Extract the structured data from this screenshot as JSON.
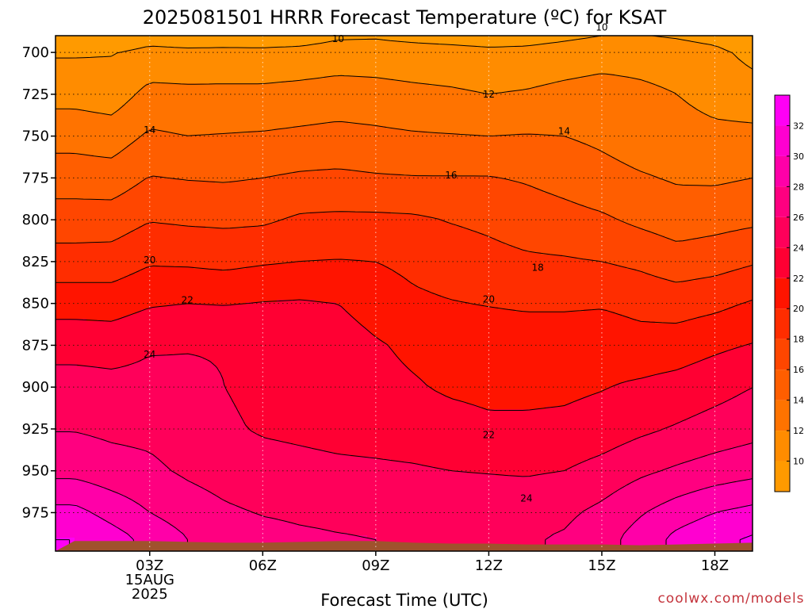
{
  "chart_data": {
    "type": "heatmap",
    "title": "2025081501 HRRR Forecast Temperature (ºC) for KSAT",
    "xlabel": "Forecast Time (UTC)",
    "ylabel": "",
    "credit": "coolwx.com/models",
    "x_hours_utc": [
      1,
      2,
      3,
      4,
      5,
      6,
      7,
      8,
      9,
      10,
      11,
      12,
      13,
      14,
      15,
      16,
      17,
      18,
      19
    ],
    "x_ticks": [
      {
        "hour": 3,
        "label": "03Z",
        "sub": [
          "15AUG",
          "2025"
        ]
      },
      {
        "hour": 6,
        "label": "06Z"
      },
      {
        "hour": 9,
        "label": "09Z"
      },
      {
        "hour": 12,
        "label": "12Z"
      },
      {
        "hour": 15,
        "label": "15Z"
      },
      {
        "hour": 18,
        "label": "18Z"
      }
    ],
    "xlim": [
      0.5,
      19
    ],
    "y_pressure_hpa": [
      690,
      700,
      725,
      750,
      775,
      800,
      825,
      850,
      875,
      900,
      925,
      950,
      975,
      990
    ],
    "y_ticks": [
      700,
      725,
      750,
      775,
      800,
      825,
      850,
      875,
      900,
      925,
      950,
      975
    ],
    "ylim": [
      690,
      998
    ],
    "z_temperature_c": [
      [
        7.9,
        8.4,
        9.2,
        8.9,
        8.8,
        8.7,
        9.0,
        9.7,
        9.8,
        9.5,
        9.3,
        9.1,
        9.2,
        9.6,
        10.0,
        10.1,
        9.8,
        9.3,
        8.2
      ],
      [
        9.8,
        9.9,
        10.5,
        10.4,
        10.5,
        10.5,
        10.6,
        10.9,
        10.8,
        10.7,
        10.6,
        10.4,
        10.5,
        10.8,
        11.1,
        11.1,
        10.9,
        10.5,
        9.4
      ],
      [
        11.3,
        11.0,
        12.6,
        12.5,
        12.5,
        12.5,
        12.7,
        12.9,
        12.8,
        12.5,
        12.3,
        12.0,
        12.2,
        12.6,
        12.9,
        12.5,
        12.0,
        11.3,
        10.9
      ],
      [
        13.3,
        13.0,
        14.3,
        14.0,
        14.1,
        14.2,
        14.4,
        14.6,
        14.4,
        14.2,
        14.1,
        14.0,
        14.1,
        14.0,
        13.6,
        13.0,
        12.8,
        12.5,
        12.5
      ],
      [
        15.0,
        14.9,
        16.1,
        15.9,
        15.8,
        16.0,
        16.3,
        16.4,
        16.2,
        16.1,
        16.1,
        16.1,
        15.8,
        15.3,
        14.7,
        14.2,
        13.8,
        13.7,
        14.0
      ],
      [
        17.0,
        17.0,
        17.9,
        17.7,
        17.6,
        17.7,
        18.3,
        18.4,
        18.4,
        18.3,
        17.9,
        17.6,
        17.1,
        16.7,
        16.3,
        15.6,
        15.0,
        15.3,
        15.6
      ],
      [
        18.8,
        18.9,
        19.8,
        19.7,
        19.5,
        19.8,
        20.0,
        20.1,
        20.0,
        19.5,
        19.0,
        18.6,
        18.3,
        18.2,
        18.0,
        17.6,
        16.9,
        17.2,
        17.8
      ],
      [
        21.2,
        21.1,
        21.8,
        22.0,
        21.9,
        22.1,
        22.2,
        22.0,
        21.2,
        20.4,
        20.1,
        19.9,
        19.7,
        19.7,
        19.8,
        19.4,
        19.1,
        19.5,
        20.2
      ],
      [
        23.3,
        23.2,
        23.8,
        23.9,
        23.9,
        23.7,
        23.3,
        22.9,
        22.2,
        21.6,
        21.3,
        21.2,
        21.2,
        21.2,
        21.3,
        20.8,
        21.0,
        21.6,
        22.1
      ],
      [
        24.8,
        24.6,
        24.6,
        24.4,
        24.0,
        23.5,
        23.2,
        22.9,
        22.6,
        22.2,
        21.7,
        21.5,
        21.5,
        21.6,
        21.9,
        22.3,
        22.7,
        23.3,
        24.0
      ],
      [
        25.9,
        25.6,
        25.5,
        25.0,
        24.3,
        23.8,
        23.6,
        23.4,
        23.3,
        23.1,
        22.8,
        22.4,
        22.4,
        22.5,
        22.9,
        23.6,
        24.2,
        24.8,
        25.3
      ],
      [
        27.4,
        26.8,
        26.4,
        25.7,
        25.2,
        24.8,
        24.6,
        24.4,
        24.3,
        24.2,
        24.0,
        23.9,
        23.8,
        24.0,
        24.7,
        25.6,
        26.3,
        26.9,
        27.4
      ],
      [
        30.6,
        29.3,
        28.0,
        27.0,
        26.3,
        25.9,
        25.7,
        25.6,
        25.5,
        25.4,
        25.3,
        25.2,
        25.2,
        25.6,
        26.5,
        27.8,
        29.0,
        30.0,
        30.6
      ],
      [
        32.0,
        30.8,
        29.4,
        28.0,
        27.1,
        26.6,
        26.3,
        26.1,
        26.0,
        25.9,
        25.8,
        25.7,
        25.8,
        26.2,
        27.2,
        28.8,
        30.5,
        31.6,
        32.2
      ]
    ],
    "contour_levels": [
      10,
      12,
      14,
      16,
      18,
      20,
      22,
      24,
      26,
      28,
      30,
      32
    ],
    "contour_labels": [
      {
        "value": 10,
        "hour": 8.0,
        "p": 692.0
      },
      {
        "value": 10,
        "hour": 15.0,
        "p": 685.0
      },
      {
        "value": 12,
        "hour": 12.0,
        "p": 725.0
      },
      {
        "value": 14,
        "hour": 3.0,
        "p": 746.5
      },
      {
        "value": 14,
        "hour": 14.0,
        "p": 747.0
      },
      {
        "value": 16,
        "hour": 11.0,
        "p": 773.5
      },
      {
        "value": 18,
        "hour": 13.3,
        "p": 828.5
      },
      {
        "value": 20,
        "hour": 3.0,
        "p": 824.0
      },
      {
        "value": 20,
        "hour": 12.0,
        "p": 847.5
      },
      {
        "value": 22,
        "hour": 4.0,
        "p": 848.0
      },
      {
        "value": 22,
        "hour": 12.0,
        "p": 928.5
      },
      {
        "value": 24,
        "hour": 3.0,
        "p": 880.5
      },
      {
        "value": 24,
        "hour": 13.0,
        "p": 966.5
      }
    ],
    "color_scale": {
      "bounds": [
        8,
        10,
        12,
        14,
        16,
        18,
        20,
        22,
        24,
        26,
        28,
        30,
        32,
        34
      ],
      "colors": [
        "#ff9a00",
        "#ff8c00",
        "#ff7300",
        "#ff5e00",
        "#ff4600",
        "#ff2d00",
        "#ff1400",
        "#ff0033",
        "#ff005a",
        "#ff0080",
        "#ff00a8",
        "#ff00d0",
        "#ff00f5"
      ],
      "tick_labels": [
        10,
        12,
        14,
        16,
        18,
        20,
        22,
        24,
        26,
        28,
        30,
        32
      ]
    },
    "terrain": {
      "color": "#a0522d",
      "surface_pressure_hpa": [
        992,
        992,
        992,
        992.5,
        993,
        993,
        992.5,
        992,
        992,
        993,
        993.5,
        993.5,
        994,
        994,
        994,
        994.5,
        994,
        993.5,
        993
      ]
    },
    "grid": true
  }
}
